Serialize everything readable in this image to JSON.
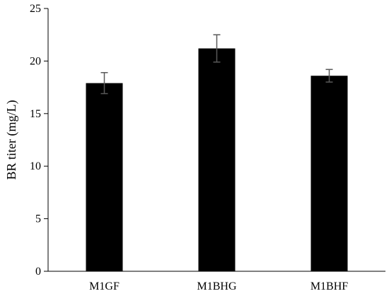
{
  "chart_data": {
    "type": "bar",
    "title": "",
    "xlabel": "",
    "ylabel": "BR titer (mg/L)",
    "ylim": [
      0,
      25
    ],
    "yticks": [
      0,
      5,
      10,
      15,
      20,
      25
    ],
    "grid": false,
    "categories": [
      "M1GF",
      "M1BHG",
      "M1BHF"
    ],
    "values": [
      17.9,
      21.2,
      18.6
    ],
    "errors": [
      1.0,
      1.3,
      0.6
    ],
    "bar_color": "#000000",
    "error_bar_color": "#595959"
  }
}
